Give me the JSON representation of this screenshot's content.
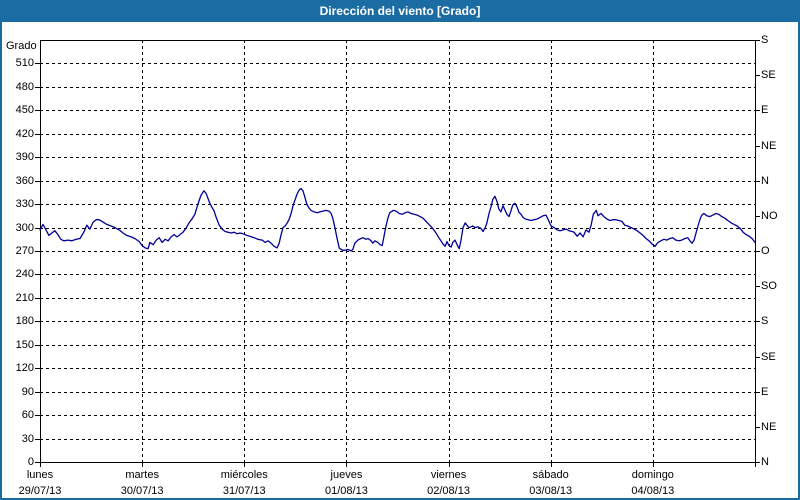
{
  "window": {
    "title": "Dirección del viento [Grado]"
  },
  "colors": {
    "titlebar_bg": "#1c6ca4",
    "frame": "#1c6ca4",
    "line": "#000099",
    "grid": "#000000",
    "axis": "#000000",
    "text": "#000000",
    "title_text": "#ffffff",
    "background": "#ffffff"
  },
  "y_axis": {
    "title": "Grado",
    "min": 0,
    "max": 540,
    "tick_step": 30,
    "tick_labels": [
      "0",
      "30",
      "60",
      "90",
      "120",
      "150",
      "180",
      "210",
      "240",
      "270",
      "300",
      "330",
      "360",
      "390",
      "420",
      "450",
      "480",
      "510"
    ]
  },
  "right_axis": {
    "labels": [
      {
        "deg": 540,
        "text": "S"
      },
      {
        "deg": 495,
        "text": "SE"
      },
      {
        "deg": 450,
        "text": "E"
      },
      {
        "deg": 405,
        "text": "NE"
      },
      {
        "deg": 360,
        "text": "N"
      },
      {
        "deg": 315,
        "text": "NO"
      },
      {
        "deg": 270,
        "text": "O"
      },
      {
        "deg": 225,
        "text": "SO"
      },
      {
        "deg": 180,
        "text": "S"
      },
      {
        "deg": 135,
        "text": "SE"
      },
      {
        "deg": 90,
        "text": "E"
      },
      {
        "deg": 45,
        "text": "NE"
      },
      {
        "deg": 0,
        "text": "N"
      }
    ]
  },
  "x_axis": {
    "days": [
      {
        "name": "lunes",
        "date": "29/07/13"
      },
      {
        "name": "martes",
        "date": "30/07/13"
      },
      {
        "name": "miércoles",
        "date": "31/07/13"
      },
      {
        "name": "jueves",
        "date": "01/08/13"
      },
      {
        "name": "viernes",
        "date": "02/08/13"
      },
      {
        "name": "sábado",
        "date": "03/08/13"
      },
      {
        "name": "domingo",
        "date": "04/08/13"
      }
    ]
  },
  "chart_data": {
    "type": "line",
    "title": "Dirección del viento [Grado]",
    "ylabel": "Grado",
    "ylim": [
      0,
      540
    ],
    "y_tick_step": 30,
    "x_unit": "hours_since_2013-07-29_00:00",
    "x_range": [
      0,
      168
    ],
    "grid": "dashed",
    "legend": "none",
    "series": [
      {
        "name": "Dirección del viento",
        "unit": "Grado",
        "points": [
          [
            0,
            297
          ],
          [
            0.7,
            304
          ],
          [
            1.4,
            297
          ],
          [
            2.1,
            290
          ],
          [
            2.8,
            293
          ],
          [
            3.5,
            296
          ],
          [
            4.2,
            291
          ],
          [
            4.9,
            285
          ],
          [
            5.6,
            283
          ],
          [
            6.6,
            284
          ],
          [
            7.5,
            283
          ],
          [
            8.5,
            285
          ],
          [
            9.4,
            286
          ],
          [
            10.3,
            294
          ],
          [
            11,
            303
          ],
          [
            11.7,
            298
          ],
          [
            12.5,
            307
          ],
          [
            13.2,
            310
          ],
          [
            13.9,
            310
          ],
          [
            14.8,
            307
          ],
          [
            15.7,
            304
          ],
          [
            16.7,
            302
          ],
          [
            17.6,
            300
          ],
          [
            18.6,
            297
          ],
          [
            19.5,
            293
          ],
          [
            20.4,
            290
          ],
          [
            21.4,
            288
          ],
          [
            22.3,
            286
          ],
          [
            23.3,
            282
          ],
          [
            24,
            277
          ],
          [
            24.7,
            274
          ],
          [
            25.4,
            273
          ],
          [
            25.8,
            281
          ],
          [
            26.6,
            278
          ],
          [
            27.3,
            284
          ],
          [
            28,
            287
          ],
          [
            28.7,
            281
          ],
          [
            29.4,
            285
          ],
          [
            30.1,
            283
          ],
          [
            30.8,
            288
          ],
          [
            31.5,
            291
          ],
          [
            32.2,
            288
          ],
          [
            32.9,
            291
          ],
          [
            33.6,
            294
          ],
          [
            34.3,
            299
          ],
          [
            35,
            306
          ],
          [
            35.7,
            311
          ],
          [
            36.4,
            317
          ],
          [
            37.1,
            330
          ],
          [
            37.8,
            341
          ],
          [
            38.5,
            347
          ],
          [
            39,
            344
          ],
          [
            39.5,
            337
          ],
          [
            39.9,
            331
          ],
          [
            40.4,
            326
          ],
          [
            40.9,
            321
          ],
          [
            41.4,
            313
          ],
          [
            42.1,
            303
          ],
          [
            42.8,
            298
          ],
          [
            43.5,
            295
          ],
          [
            44.2,
            294
          ],
          [
            44.9,
            293
          ],
          [
            45.6,
            294
          ],
          [
            46.3,
            292
          ],
          [
            47,
            293
          ],
          [
            47.7,
            292
          ],
          [
            48.6,
            290
          ],
          [
            49.3,
            289
          ],
          [
            50.3,
            287
          ],
          [
            51.2,
            285
          ],
          [
            52.2,
            284
          ],
          [
            52.9,
            281
          ],
          [
            53.6,
            283
          ],
          [
            54.3,
            280
          ],
          [
            55,
            276
          ],
          [
            55.7,
            274
          ],
          [
            56.2,
            280
          ],
          [
            56.6,
            290
          ],
          [
            57.1,
            300
          ],
          [
            57.6,
            302
          ],
          [
            58,
            305
          ],
          [
            58.5,
            310
          ],
          [
            59,
            318
          ],
          [
            59.4,
            327
          ],
          [
            59.9,
            335
          ],
          [
            60.4,
            343
          ],
          [
            60.9,
            348
          ],
          [
            61.3,
            350
          ],
          [
            61.8,
            347
          ],
          [
            62.3,
            338
          ],
          [
            62.7,
            330
          ],
          [
            63.2,
            325
          ],
          [
            63.7,
            322
          ],
          [
            64.4,
            320
          ],
          [
            65.1,
            319
          ],
          [
            65.8,
            320
          ],
          [
            66.5,
            321
          ],
          [
            67.2,
            322
          ],
          [
            67.9,
            321
          ],
          [
            68.4,
            318
          ],
          [
            68.8,
            312
          ],
          [
            69.3,
            300
          ],
          [
            69.8,
            286
          ],
          [
            70.3,
            274
          ],
          [
            71,
            271
          ],
          [
            71.7,
            271
          ],
          [
            72.4,
            272
          ],
          [
            73.1,
            270
          ],
          [
            73.5,
            272
          ],
          [
            74,
            280
          ],
          [
            74.7,
            284
          ],
          [
            75.4,
            286
          ],
          [
            75.9,
            287
          ],
          [
            76.6,
            285
          ],
          [
            77.1,
            286
          ],
          [
            77.8,
            283
          ],
          [
            78.2,
            280
          ],
          [
            78.7,
            283
          ],
          [
            79.4,
            281
          ],
          [
            79.9,
            278
          ],
          [
            80.4,
            277
          ],
          [
            80.8,
            288
          ],
          [
            81.3,
            302
          ],
          [
            81.8,
            313
          ],
          [
            82.2,
            319
          ],
          [
            83,
            322
          ],
          [
            83.7,
            321
          ],
          [
            84.4,
            318
          ],
          [
            85.1,
            317
          ],
          [
            85.8,
            319
          ],
          [
            86.5,
            320
          ],
          [
            87.2,
            318
          ],
          [
            87.9,
            317
          ],
          [
            88.6,
            316
          ],
          [
            89.3,
            314
          ],
          [
            90,
            312
          ],
          [
            90.7,
            308
          ],
          [
            91.4,
            304
          ],
          [
            92.1,
            300
          ],
          [
            92.8,
            295
          ],
          [
            93.5,
            289
          ],
          [
            94.2,
            283
          ],
          [
            94.7,
            279
          ],
          [
            95.2,
            276
          ],
          [
            95.6,
            282
          ],
          [
            96.1,
            277
          ],
          [
            96.6,
            275
          ],
          [
            97,
            281
          ],
          [
            97.5,
            284
          ],
          [
            98,
            278
          ],
          [
            98.5,
            273
          ],
          [
            98.9,
            283
          ],
          [
            99.4,
            300
          ],
          [
            99.9,
            306
          ],
          [
            100.3,
            303
          ],
          [
            100.8,
            300
          ],
          [
            101.3,
            301
          ],
          [
            101.7,
            302
          ],
          [
            102.2,
            300
          ],
          [
            102.9,
            301
          ],
          [
            103.6,
            299
          ],
          [
            104.1,
            295
          ],
          [
            104.6,
            300
          ],
          [
            105,
            306
          ],
          [
            105.5,
            318
          ],
          [
            106,
            327
          ],
          [
            106.4,
            336
          ],
          [
            106.9,
            340
          ],
          [
            107.4,
            333
          ],
          [
            107.8,
            324
          ],
          [
            108.3,
            320
          ],
          [
            108.8,
            328
          ],
          [
            109.2,
            323
          ],
          [
            109.7,
            317
          ],
          [
            110.2,
            314
          ],
          [
            110.7,
            322
          ],
          [
            111.1,
            329
          ],
          [
            111.6,
            331
          ],
          [
            112.1,
            326
          ],
          [
            112.5,
            320
          ],
          [
            113,
            317
          ],
          [
            113.5,
            313
          ],
          [
            114,
            311
          ],
          [
            114.7,
            310
          ],
          [
            115.4,
            309
          ],
          [
            116.1,
            310
          ],
          [
            116.8,
            311
          ],
          [
            117.5,
            313
          ],
          [
            118.2,
            315
          ],
          [
            118.9,
            316
          ],
          [
            119.6,
            308
          ],
          [
            120.1,
            302
          ],
          [
            120.8,
            300
          ],
          [
            121.5,
            297
          ],
          [
            122.2,
            296
          ],
          [
            122.9,
            297
          ],
          [
            123.6,
            298
          ],
          [
            124.3,
            296
          ],
          [
            125,
            295
          ],
          [
            125.5,
            294
          ],
          [
            126.2,
            289
          ],
          [
            126.9,
            293
          ],
          [
            127.6,
            288
          ],
          [
            128.3,
            297
          ],
          [
            129,
            294
          ],
          [
            129.5,
            303
          ],
          [
            130,
            317
          ],
          [
            130.7,
            322
          ],
          [
            131.1,
            315
          ],
          [
            131.8,
            318
          ],
          [
            132.5,
            314
          ],
          [
            133.2,
            311
          ],
          [
            133.9,
            309
          ],
          [
            134.6,
            310
          ],
          [
            135.3,
            310
          ],
          [
            136,
            309
          ],
          [
            136.7,
            308
          ],
          [
            137.4,
            303
          ],
          [
            138.1,
            302
          ],
          [
            138.9,
            300
          ],
          [
            139.6,
            298
          ],
          [
            140.3,
            296
          ],
          [
            141,
            293
          ],
          [
            141.7,
            290
          ],
          [
            142.4,
            286
          ],
          [
            143.1,
            283
          ],
          [
            143.8,
            279
          ],
          [
            144.5,
            276
          ],
          [
            145.2,
            281
          ],
          [
            145.9,
            283
          ],
          [
            146.6,
            285
          ],
          [
            147.3,
            284
          ],
          [
            148,
            286
          ],
          [
            148.7,
            287
          ],
          [
            149.4,
            284
          ],
          [
            150.1,
            283
          ],
          [
            150.8,
            284
          ],
          [
            151.5,
            286
          ],
          [
            152.2,
            287
          ],
          [
            152.7,
            283
          ],
          [
            153.2,
            280
          ],
          [
            153.7,
            284
          ],
          [
            154.1,
            292
          ],
          [
            154.6,
            302
          ],
          [
            155.1,
            311
          ],
          [
            155.5,
            316
          ],
          [
            156,
            318
          ],
          [
            156.7,
            315
          ],
          [
            157.4,
            314
          ],
          [
            158.1,
            316
          ],
          [
            158.8,
            318
          ],
          [
            159.5,
            317
          ],
          [
            160.2,
            314
          ],
          [
            160.9,
            312
          ],
          [
            161.6,
            309
          ],
          [
            162.4,
            306
          ],
          [
            163.1,
            304
          ],
          [
            163.8,
            302
          ],
          [
            164.5,
            299
          ],
          [
            165.2,
            294
          ],
          [
            165.9,
            291
          ],
          [
            166.6,
            289
          ],
          [
            167.3,
            286
          ],
          [
            168,
            281
          ]
        ]
      }
    ]
  }
}
